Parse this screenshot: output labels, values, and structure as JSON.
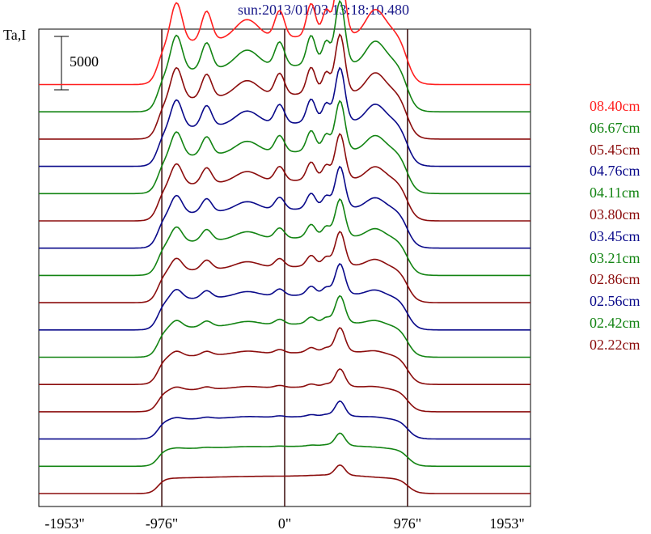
{
  "chart_data": {
    "type": "line",
    "title": "sun:2013/01/03 13:18:10.480",
    "ylabel": "Ta,I",
    "scale_bar_label": "5000",
    "x_tick_labels": [
      "-1953\"",
      "-976\"",
      "0\"",
      "976\"",
      "1953\""
    ],
    "x_ticks": [
      -1953,
      -976,
      0,
      976,
      1953
    ],
    "xlim": [
      -1953,
      1953
    ],
    "vertical_lines": [
      -976,
      0,
      976
    ],
    "legend_position": "right",
    "series": [
      {
        "name": "08.40cm",
        "color": "#ff1f1f",
        "offset": 11
      },
      {
        "name": "06.67cm",
        "color": "#138413",
        "offset": 10
      },
      {
        "name": "05.45cm",
        "color": "#8b0d0d",
        "offset": 9
      },
      {
        "name": "04.76cm",
        "color": "#0a0a8a",
        "offset": 8
      },
      {
        "name": "04.11cm",
        "color": "#138413",
        "offset": 7
      },
      {
        "name": "03.80cm",
        "color": "#8b0d0d",
        "offset": 6
      },
      {
        "name": "03.45cm",
        "color": "#0a0a8a",
        "offset": 5
      },
      {
        "name": "03.21cm",
        "color": "#138413",
        "offset": 4
      },
      {
        "name": "02.86cm",
        "color": "#8b0d0d",
        "offset": 3
      },
      {
        "name": "02.56cm",
        "color": "#0a0a8a",
        "offset": 2
      },
      {
        "name": "02.42cm",
        "color": "#138413",
        "offset": 1
      },
      {
        "name": "02.22cm",
        "color": "#8b0d0d",
        "offset": 0
      }
    ],
    "extra_traces": [
      {
        "color": "#8b0d0d",
        "offset": -1
      },
      {
        "color": "#0a0a8a",
        "offset": -2
      },
      {
        "color": "#138413",
        "offset": -3
      },
      {
        "color": "#8b0d0d",
        "offset": -4
      }
    ]
  }
}
